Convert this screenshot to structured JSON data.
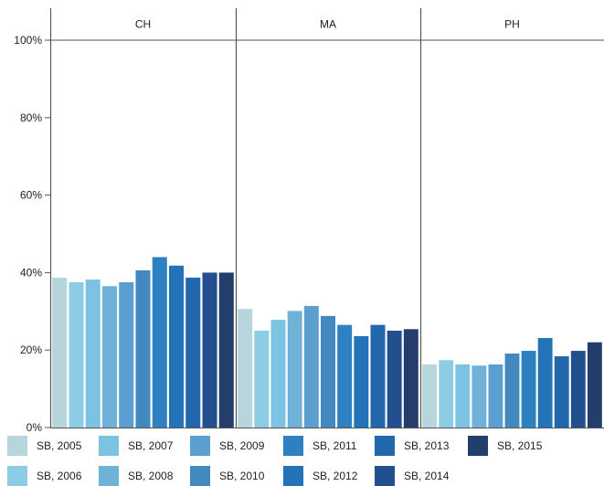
{
  "chart_data": {
    "type": "bar",
    "panels": [
      "CH",
      "MA",
      "PH"
    ],
    "y_ticks": [
      "0%",
      "20%",
      "40%",
      "60%",
      "80%",
      "100%"
    ],
    "ylim": [
      0,
      100
    ],
    "legend_position": "bottom",
    "series": [
      {
        "name": "SB, 2005",
        "color": "#b7d5dc",
        "values": [
          38.7,
          30.6,
          16.3
        ]
      },
      {
        "name": "SB, 2006",
        "color": "#8ccde4",
        "values": [
          37.5,
          25.0,
          17.4
        ]
      },
      {
        "name": "SB, 2007",
        "color": "#7cc3e3",
        "values": [
          38.2,
          27.8,
          16.3
        ]
      },
      {
        "name": "SB, 2008",
        "color": "#6eb2d8",
        "values": [
          36.5,
          30.1,
          16.0
        ]
      },
      {
        "name": "SB, 2009",
        "color": "#5a9fcf",
        "values": [
          37.5,
          31.4,
          16.3
        ]
      },
      {
        "name": "SB, 2010",
        "color": "#4289c0",
        "values": [
          40.6,
          28.8,
          19.1
        ]
      },
      {
        "name": "SB, 2011",
        "color": "#2f80c1",
        "values": [
          44.0,
          26.5,
          19.8
        ]
      },
      {
        "name": "SB, 2012",
        "color": "#2473b9",
        "values": [
          41.8,
          23.6,
          23.1
        ]
      },
      {
        "name": "SB, 2013",
        "color": "#2266ab",
        "values": [
          38.7,
          26.5,
          18.4
        ]
      },
      {
        "name": "SB, 2014",
        "color": "#244f8f",
        "values": [
          40.0,
          25.0,
          19.8
        ]
      },
      {
        "name": "SB, 2015",
        "color": "#243e6b",
        "values": [
          40.0,
          25.4,
          22.0
        ]
      }
    ]
  }
}
